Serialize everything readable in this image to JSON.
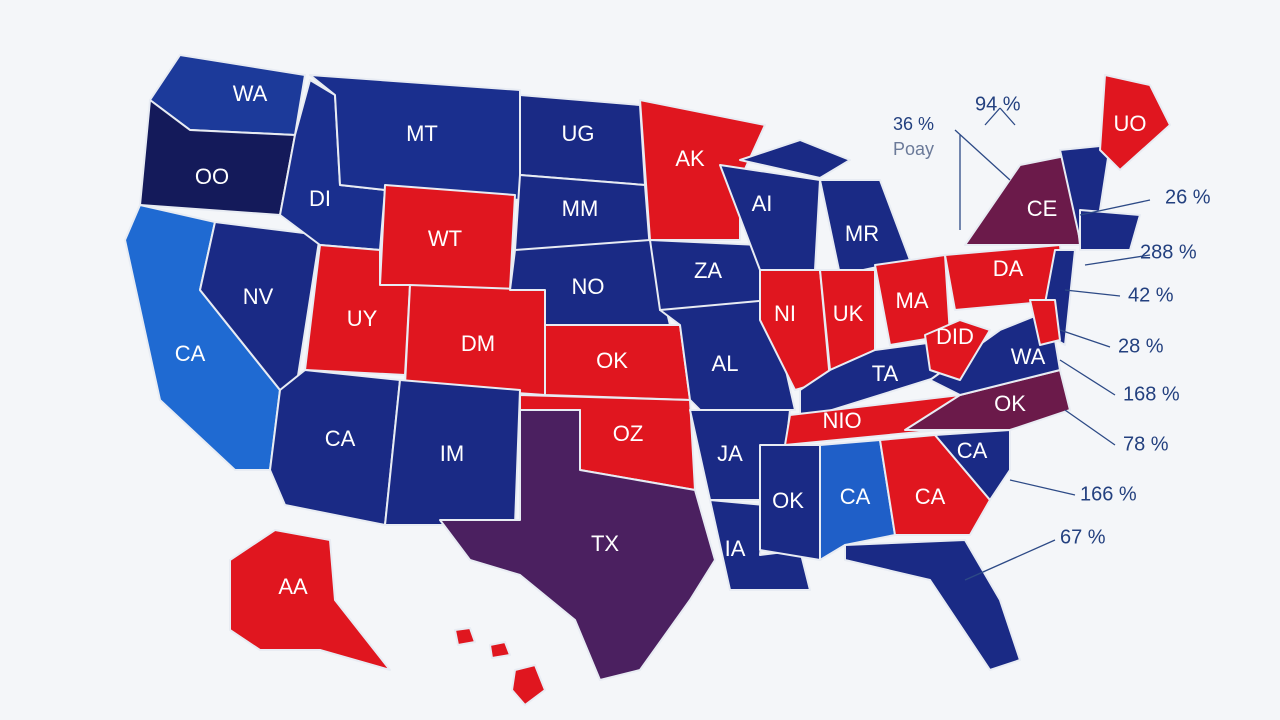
{
  "map": {
    "state_labels": [
      "WA",
      "OO",
      "DI",
      "MT",
      "UG",
      "AK",
      "WT",
      "MM",
      "AI",
      "MR",
      "NO",
      "ZA",
      "NV",
      "UY",
      "DM",
      "CA",
      "OK",
      "NI",
      "UK",
      "MA",
      "DA",
      "CE",
      "UO",
      "AL",
      "TA",
      "DID",
      "WA",
      "CA",
      "IM",
      "OZ",
      "JA",
      "NIO",
      "OK",
      "CA",
      "TX",
      "IA",
      "OK",
      "CA",
      "CA",
      "AA"
    ],
    "annotations": [
      "94 %",
      "36 %",
      "Poay",
      "26 %",
      "288 %",
      "42 %",
      "28 %",
      "168 %",
      "78 %",
      "166 %",
      "67 %"
    ]
  }
}
